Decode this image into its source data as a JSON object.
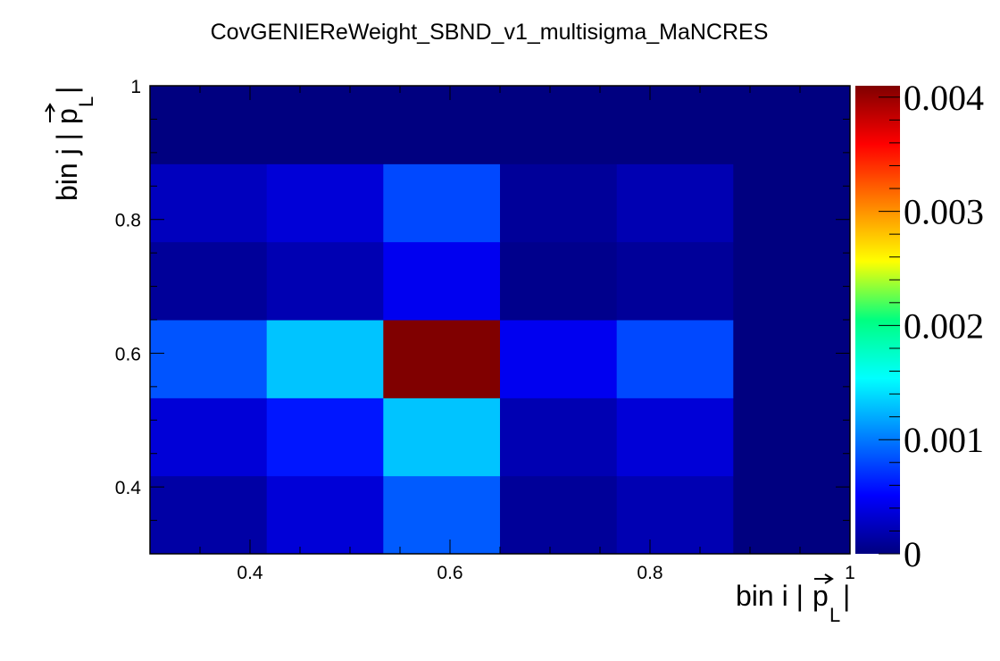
{
  "chart_data": {
    "type": "heatmap",
    "title": "CovGENIEReWeight_SBND_v1_multisigma_MaNCRES",
    "xlabel": {
      "main": "bin i |",
      "arrow_symbol": "p",
      "subscript": "L",
      "close": "|"
    },
    "ylabel": {
      "main": "bin j |",
      "arrow_symbol": "p",
      "subscript": "L",
      "close": "|"
    },
    "xlim": [
      0.3,
      1.0
    ],
    "ylim": [
      0.3,
      1.0
    ],
    "x_bin_edges": [
      0.3,
      0.4167,
      0.5333,
      0.65,
      0.7667,
      0.8833,
      1.0
    ],
    "y_bin_edges": [
      0.3,
      0.4167,
      0.5333,
      0.65,
      0.7667,
      0.8833,
      1.0
    ],
    "x_ticks": [
      0.4,
      0.6,
      0.8,
      1.0
    ],
    "x_tick_labels": [
      "0.4",
      "0.6",
      "0.8",
      "1"
    ],
    "y_ticks": [
      0.4,
      0.6,
      0.8,
      1.0
    ],
    "y_tick_labels": [
      "0.4",
      "0.6",
      "0.8",
      "1"
    ],
    "z_range": [
      0,
      0.0041
    ],
    "z_ticks": [
      0,
      0.001,
      0.002,
      0.003,
      0.004
    ],
    "z_tick_labels": [
      "0",
      "0.001",
      "0.002",
      "0.003",
      "0.004"
    ],
    "colormap": "jet",
    "values_rows_bottom_to_top": [
      [
        0.00015,
        0.00035,
        0.00088,
        0.0001,
        0.0002,
        0.0
      ],
      [
        0.00035,
        0.0006,
        0.0013,
        0.0002,
        0.00035,
        0.0
      ],
      [
        0.00085,
        0.0013,
        0.0041,
        0.00045,
        0.0008,
        0.0
      ],
      [
        0.0001,
        0.0002,
        0.00045,
        5e-05,
        0.0001,
        0.0
      ],
      [
        0.00025,
        0.00035,
        0.0008,
        0.0001,
        0.0002,
        0.0
      ],
      [
        0.0,
        0.0,
        0.0,
        0.0,
        0.0,
        0.0
      ]
    ]
  }
}
